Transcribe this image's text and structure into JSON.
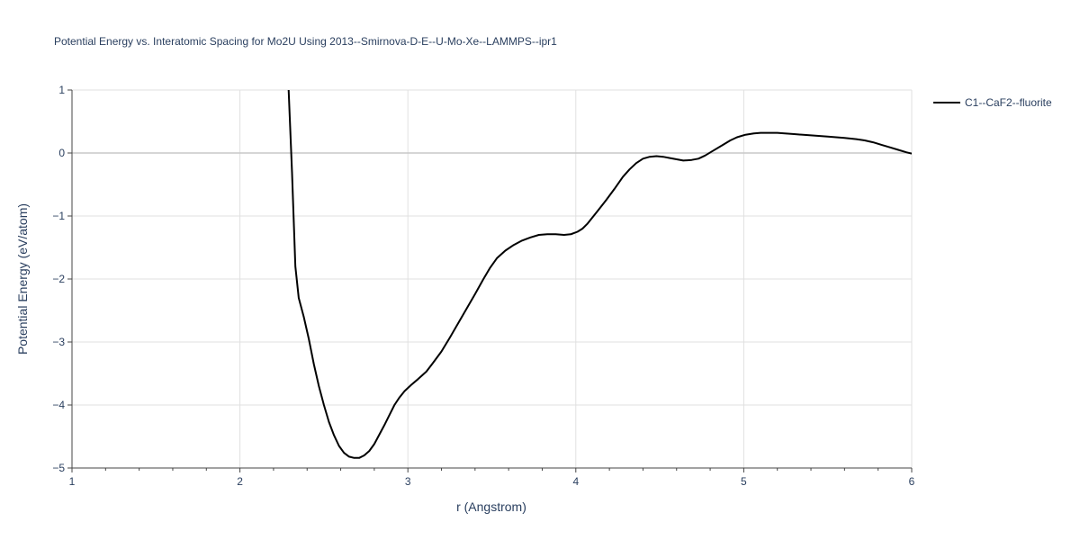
{
  "chart_data": {
    "type": "line",
    "title": "Potential Energy vs. Interatomic Spacing for Mo2U Using 2013--Smirnova-D-E--U-Mo-Xe--LAMMPS--ipr1",
    "xlabel": "r (Angstrom)",
    "ylabel": "Potential Energy (eV/atom)",
    "xlim": [
      1,
      6
    ],
    "ylim": [
      -5,
      1
    ],
    "xticks": [
      1,
      2,
      3,
      4,
      5,
      6
    ],
    "yticks": [
      -5,
      -4,
      -3,
      -2,
      -1,
      0,
      1
    ],
    "xtick_labels": [
      "1",
      "2",
      "3",
      "4",
      "5",
      "6"
    ],
    "ytick_labels": [
      "−5",
      "−4",
      "−3",
      "−2",
      "−1",
      "0",
      "1"
    ],
    "grid": true,
    "legend_position": "top-right",
    "series": [
      {
        "name": "C1--CaF2--fluorite",
        "color": "#000000",
        "x": [
          2.29,
          2.31,
          2.33,
          2.35,
          2.38,
          2.41,
          2.44,
          2.47,
          2.5,
          2.53,
          2.56,
          2.59,
          2.62,
          2.65,
          2.68,
          2.71,
          2.74,
          2.77,
          2.8,
          2.83,
          2.86,
          2.89,
          2.92,
          2.95,
          2.98,
          3.02,
          3.06,
          3.11,
          3.15,
          3.2,
          3.25,
          3.3,
          3.35,
          3.4,
          3.45,
          3.49,
          3.53,
          3.58,
          3.63,
          3.68,
          3.73,
          3.78,
          3.83,
          3.88,
          3.93,
          3.97,
          4.01,
          4.04,
          4.07,
          4.1,
          4.13,
          4.18,
          4.23,
          4.28,
          4.32,
          4.36,
          4.4,
          4.44,
          4.48,
          4.52,
          4.56,
          4.6,
          4.64,
          4.69,
          4.73,
          4.77,
          4.82,
          4.87,
          4.92,
          4.96,
          5.01,
          5.06,
          5.1,
          5.15,
          5.2,
          5.3,
          5.4,
          5.5,
          5.6,
          5.67,
          5.72,
          5.77,
          5.82,
          5.87,
          5.92,
          5.97,
          6.0
        ],
        "y": [
          1.0,
          -0.3,
          -1.8,
          -2.3,
          -2.6,
          -2.95,
          -3.35,
          -3.7,
          -4.0,
          -4.27,
          -4.48,
          -4.65,
          -4.76,
          -4.82,
          -4.84,
          -4.84,
          -4.8,
          -4.73,
          -4.62,
          -4.47,
          -4.32,
          -4.16,
          -4.0,
          -3.88,
          -3.78,
          -3.68,
          -3.59,
          -3.47,
          -3.33,
          -3.15,
          -2.93,
          -2.7,
          -2.47,
          -2.24,
          -2.0,
          -1.82,
          -1.67,
          -1.55,
          -1.46,
          -1.39,
          -1.34,
          -1.3,
          -1.29,
          -1.29,
          -1.3,
          -1.29,
          -1.25,
          -1.2,
          -1.12,
          -1.02,
          -0.92,
          -0.75,
          -0.57,
          -0.38,
          -0.26,
          -0.16,
          -0.09,
          -0.06,
          -0.05,
          -0.06,
          -0.08,
          -0.1,
          -0.12,
          -0.11,
          -0.09,
          -0.04,
          0.04,
          0.12,
          0.2,
          0.25,
          0.29,
          0.31,
          0.32,
          0.32,
          0.32,
          0.3,
          0.28,
          0.26,
          0.24,
          0.22,
          0.2,
          0.17,
          0.13,
          0.09,
          0.05,
          0.01,
          -0.01
        ]
      }
    ]
  }
}
